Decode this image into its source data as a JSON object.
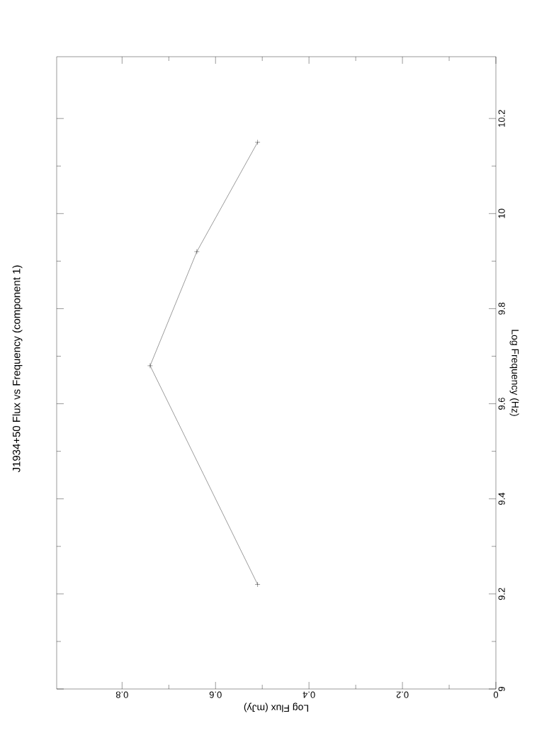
{
  "chart_data": {
    "type": "line",
    "title": "J1934+50 Flux vs Frequency (component 1)",
    "xlabel": "Log Flux (mJy)",
    "ylabel": "Log Frequency (Hz)",
    "x": [
      0.51,
      0.74,
      0.64,
      0.51
    ],
    "series": [
      {
        "color": "#000000",
        "values": [
          9.22,
          9.68,
          9.92,
          10.15
        ]
      }
    ],
    "xlim": [
      0.94,
      0
    ],
    "ylim": [
      9,
      10.33
    ],
    "xticks": [
      0,
      0.2,
      0.4,
      0.6,
      0.8
    ],
    "yticks": [
      9,
      9.2,
      9.4,
      9.6,
      9.8,
      10,
      10.2
    ],
    "marker": "cross",
    "line_style": "solid"
  }
}
